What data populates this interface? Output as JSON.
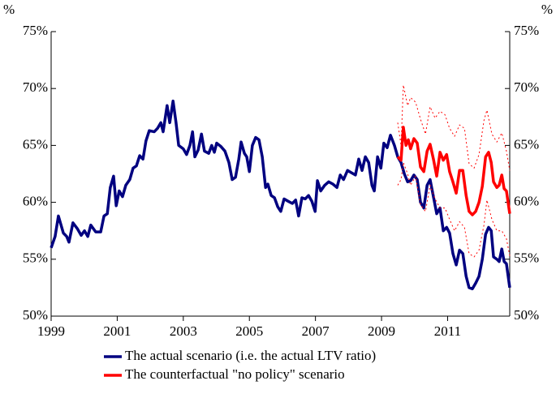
{
  "chart_data": {
    "type": "line",
    "y_unit": "%",
    "y2_unit": "%",
    "xlim": [
      1999,
      2012.88
    ],
    "xticks": [
      1999,
      2001,
      2003,
      2005,
      2007,
      2009,
      2011
    ],
    "ylim": [
      50,
      75
    ],
    "yticks": [
      {
        "value": 50,
        "label": "50%"
      },
      {
        "value": 55,
        "label": "55%"
      },
      {
        "value": 60,
        "label": "60%"
      },
      {
        "value": 65,
        "label": "65%"
      },
      {
        "value": 70,
        "label": "70%"
      },
      {
        "value": 75,
        "label": "75%"
      }
    ],
    "y2lim": [
      50,
      75
    ],
    "y2ticks": [
      {
        "value": 50,
        "label": "50%"
      },
      {
        "value": 55,
        "label": "55%"
      },
      {
        "value": 60,
        "label": "60%"
      },
      {
        "value": 65,
        "label": "65%"
      },
      {
        "value": 70,
        "label": "70%"
      },
      {
        "value": 75,
        "label": "75%"
      }
    ],
    "grid": false,
    "legend": "bottom",
    "series": [
      {
        "name": "The actual scenario (i.e. the actual LTV ratio)",
        "color": "#000080",
        "width": 3.5,
        "dashed": false,
        "x": [
          1999.0,
          1999.12,
          1999.22,
          1999.37,
          1999.47,
          1999.54,
          1999.66,
          1999.79,
          1999.91,
          2000.01,
          2000.11,
          2000.2,
          2000.35,
          2000.5,
          2000.6,
          2000.7,
          2000.79,
          2000.89,
          2000.97,
          2001.06,
          2001.16,
          2001.26,
          2001.38,
          2001.48,
          2001.58,
          2001.68,
          2001.78,
          2001.87,
          2001.97,
          2002.12,
          2002.22,
          2002.32,
          2002.39,
          2002.51,
          2002.59,
          2002.69,
          2002.78,
          2002.86,
          2003.0,
          2003.1,
          2003.2,
          2003.28,
          2003.35,
          2003.45,
          2003.55,
          2003.64,
          2003.77,
          2003.86,
          2003.94,
          2004.01,
          2004.14,
          2004.26,
          2004.38,
          2004.48,
          2004.58,
          2004.68,
          2004.75,
          2004.85,
          2004.92,
          2005.0,
          2005.09,
          2005.19,
          2005.29,
          2005.39,
          2005.49,
          2005.56,
          2005.66,
          2005.76,
          2005.86,
          2005.95,
          2006.05,
          2006.17,
          2006.3,
          2006.4,
          2006.49,
          2006.59,
          2006.69,
          2006.79,
          2006.89,
          2006.99,
          2007.06,
          2007.16,
          2007.28,
          2007.4,
          2007.53,
          2007.65,
          2007.75,
          2007.85,
          2007.97,
          2008.09,
          2008.21,
          2008.31,
          2008.41,
          2008.51,
          2008.61,
          2008.71,
          2008.78,
          2008.88,
          2008.98,
          2009.07,
          2009.17,
          2009.27,
          2009.39,
          2009.49,
          2009.59,
          2009.69,
          2009.79,
          2009.88,
          2009.98,
          2010.08,
          2010.18,
          2010.28,
          2010.38,
          2010.47,
          2010.57,
          2010.67,
          2010.77,
          2010.87,
          2010.97,
          2011.06,
          2011.16,
          2011.26,
          2011.36,
          2011.46,
          2011.56,
          2011.65,
          2011.75,
          2011.85,
          2011.95,
          2012.05,
          2012.15,
          2012.24,
          2012.32,
          2012.39,
          2012.49,
          2012.56,
          2012.64,
          2012.71,
          2012.78,
          2012.88
        ],
        "values": [
          56,
          57,
          58.8,
          57.3,
          57,
          56.5,
          58.2,
          57.7,
          57.1,
          57.5,
          57,
          58,
          57.4,
          57.4,
          58.8,
          59,
          61.3,
          62.3,
          59.7,
          61,
          60.5,
          61.5,
          62,
          63,
          63.2,
          64.1,
          63.8,
          65.4,
          66.3,
          66.2,
          66.5,
          67,
          66.2,
          68.5,
          67,
          68.9,
          67,
          65,
          64.7,
          64.2,
          65,
          66.2,
          64,
          64.6,
          66,
          64.5,
          64.3,
          65,
          64.4,
          65.2,
          64.9,
          64.5,
          63.5,
          62,
          62.2,
          63.8,
          65.3,
          64.3,
          64,
          62.7,
          65,
          65.7,
          65.5,
          64,
          61.3,
          61.6,
          60.6,
          60.4,
          59.6,
          59.2,
          60.3,
          60.1,
          59.9,
          60.2,
          58.8,
          60.4,
          60.3,
          60.6,
          60.1,
          59.2,
          61.9,
          61,
          61.5,
          61.8,
          61.6,
          61.3,
          62.4,
          62,
          62.8,
          62.6,
          62.4,
          63.8,
          62.8,
          64,
          63.5,
          61.5,
          61,
          64,
          63,
          65.2,
          64.8,
          65.9,
          65,
          64,
          63.5,
          62.5,
          61.8,
          61.9,
          62.4,
          62,
          60,
          59.5,
          61.5,
          62,
          60.5,
          59,
          59.5,
          57.5,
          57.8,
          57.3,
          55.5,
          54.5,
          55.8,
          55.5,
          53.5,
          52.5,
          52.4,
          52.9,
          53.5,
          55,
          57.2,
          57.8,
          57.5,
          55.2,
          55,
          54.8,
          55.9,
          54.8,
          54.6,
          52.5
        ]
      },
      {
        "name": "The counterfactual \"no policy\" scenario",
        "color": "#ff0000",
        "width": 3.5,
        "dashed": false,
        "x": [
          2009.49,
          2009.59,
          2009.66,
          2009.74,
          2009.81,
          2009.88,
          2009.98,
          2010.08,
          2010.18,
          2010.28,
          2010.38,
          2010.47,
          2010.57,
          2010.67,
          2010.77,
          2010.87,
          2010.97,
          2011.06,
          2011.16,
          2011.26,
          2011.36,
          2011.46,
          2011.56,
          2011.65,
          2011.75,
          2011.85,
          2011.95,
          2012.05,
          2012.15,
          2012.24,
          2012.32,
          2012.39,
          2012.49,
          2012.56,
          2012.64,
          2012.71,
          2012.78,
          2012.88
        ],
        "values": [
          64,
          63.7,
          66.6,
          65,
          65.5,
          64.7,
          65.6,
          65.2,
          63.1,
          62.7,
          64.5,
          65.1,
          63.8,
          62.3,
          64.4,
          63.7,
          64.2,
          62.7,
          61.8,
          60.8,
          62.8,
          62.8,
          60.6,
          59.2,
          58.9,
          59.2,
          60,
          61.4,
          64,
          64.4,
          63.5,
          61.8,
          61.3,
          61.5,
          62.4,
          61.2,
          61,
          59
        ]
      },
      {
        "color": "#ff0000",
        "width": 1,
        "dashed": true,
        "x": [
          2009.49,
          2009.59,
          2009.66,
          2009.79,
          2009.88,
          2010.03,
          2010.18,
          2010.33,
          2010.47,
          2010.62,
          2010.77,
          2010.92,
          2011.06,
          2011.21,
          2011.36,
          2011.51,
          2011.65,
          2011.8,
          2011.95,
          2012.1,
          2012.19,
          2012.34,
          2012.49,
          2012.64,
          2012.78,
          2012.88
        ],
        "values": [
          67,
          65,
          70.3,
          68.5,
          69.2,
          68.8,
          67.3,
          66,
          68.4,
          67.4,
          68,
          67.7,
          66.5,
          65.8,
          66.8,
          66.5,
          63.4,
          63,
          64.2,
          67.2,
          68.1,
          66,
          65.3,
          66.1,
          64.5,
          62.8
        ]
      },
      {
        "color": "#ff0000",
        "width": 1,
        "dashed": true,
        "x": [
          2009.49,
          2009.59,
          2009.66,
          2009.79,
          2009.88,
          2010.03,
          2010.18,
          2010.33,
          2010.47,
          2010.62,
          2010.77,
          2010.92,
          2011.06,
          2011.21,
          2011.36,
          2011.51,
          2011.65,
          2011.8,
          2011.95,
          2012.1,
          2012.19,
          2012.34,
          2012.49,
          2012.64,
          2012.78,
          2012.88
        ],
        "values": [
          61.5,
          62,
          63.5,
          62.5,
          61.5,
          62.3,
          59.8,
          59.2,
          61.5,
          60.3,
          59.5,
          59.5,
          58.5,
          57.5,
          58.3,
          57.8,
          55.5,
          55.2,
          55.8,
          58,
          60.2,
          58.5,
          57.5,
          57.5,
          56.8,
          55.3
        ]
      }
    ]
  }
}
